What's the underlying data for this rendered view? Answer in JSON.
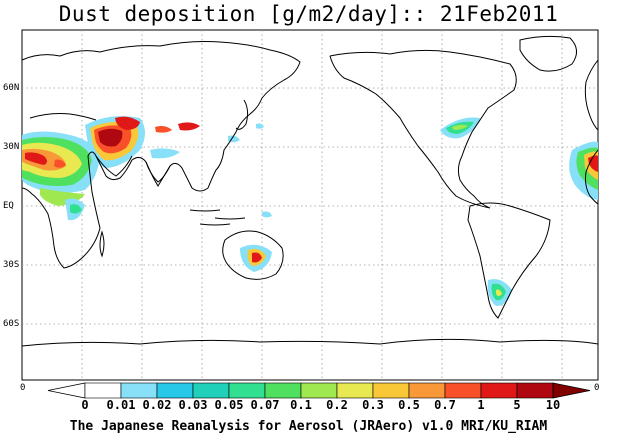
{
  "title": "Dust deposition [g/m2/day]:: 21Feb2011",
  "lat_labels": [
    "60N",
    "30N",
    "EQ",
    "30S",
    "60S"
  ],
  "edge_labels": {
    "left": "0",
    "right": "0"
  },
  "colorbar": {
    "tick_labels": [
      "0",
      "0.01",
      "0.02",
      "0.03",
      "0.05",
      "0.07",
      "0.1",
      "0.2",
      "0.3",
      "0.5",
      "0.7",
      "1",
      "5",
      "10"
    ],
    "colors": [
      "#ffffff",
      "#ffffff",
      "#88e0f8",
      "#28c8e8",
      "#20d0b8",
      "#30e090",
      "#50e060",
      "#a0e850",
      "#e8e850",
      "#f8c838",
      "#f89838",
      "#f85028",
      "#e01818",
      "#b00810",
      "#800000"
    ]
  },
  "footer": "The Japanese Reanalysis for Aerosol (JRAero) v1.0 MRI/KU_RIAM"
}
